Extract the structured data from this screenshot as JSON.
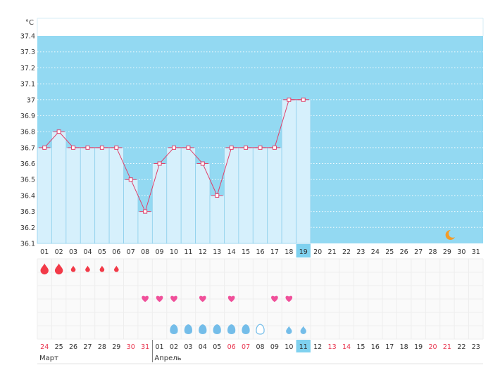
{
  "unit": "°C",
  "colors": {
    "chart_bg": "#93d9f2",
    "bar_fill": "#d6f0fc",
    "bar_stroke": "#8fd0ec",
    "line": "#e0406a",
    "today_bg": "#7fd1ef",
    "weekend": "#e8344e",
    "text": "#333333",
    "grid": "#ffffff",
    "period": "#f23a48",
    "love": "#f0509a",
    "drop": "#74bde9",
    "moon": "#f39c28"
  },
  "chart_data": {
    "type": "bar",
    "ylim": [
      36.1,
      37.4
    ],
    "yticks": [
      "36.1",
      "36.2",
      "36.3",
      "36.4",
      "36.5",
      "36.6",
      "36.7",
      "36.8",
      "36.9",
      "37",
      "37.1",
      "37.2",
      "37.3",
      "37.4"
    ],
    "categories": [
      "01",
      "02",
      "03",
      "04",
      "05",
      "06",
      "07",
      "08",
      "09",
      "10",
      "11",
      "12",
      "13",
      "14",
      "15",
      "16",
      "17",
      "18",
      "19",
      "20",
      "21",
      "22",
      "23",
      "24",
      "25",
      "26",
      "27",
      "28",
      "29",
      "30",
      "31"
    ],
    "values": [
      36.7,
      36.8,
      36.7,
      36.7,
      36.7,
      36.7,
      36.5,
      36.3,
      36.6,
      36.7,
      36.7,
      36.6,
      36.4,
      36.7,
      36.7,
      36.7,
      36.7,
      37.0,
      37.0,
      null,
      null,
      null,
      null,
      null,
      null,
      null,
      null,
      null,
      null,
      null,
      null
    ],
    "highlight_index": 18,
    "moon_index": 28
  },
  "calendar": {
    "dates": [
      {
        "d": "24",
        "weekend": true
      },
      {
        "d": "25",
        "weekend": false
      },
      {
        "d": "26",
        "weekend": false
      },
      {
        "d": "27",
        "weekend": false
      },
      {
        "d": "28",
        "weekend": false
      },
      {
        "d": "29",
        "weekend": false
      },
      {
        "d": "30",
        "weekend": true
      },
      {
        "d": "31",
        "weekend": true
      },
      {
        "d": "01",
        "weekend": false
      },
      {
        "d": "02",
        "weekend": false
      },
      {
        "d": "03",
        "weekend": false
      },
      {
        "d": "04",
        "weekend": false
      },
      {
        "d": "05",
        "weekend": false
      },
      {
        "d": "06",
        "weekend": true
      },
      {
        "d": "07",
        "weekend": true
      },
      {
        "d": "08",
        "weekend": false
      },
      {
        "d": "09",
        "weekend": false
      },
      {
        "d": "10",
        "weekend": false
      },
      {
        "d": "11",
        "weekend": false
      },
      {
        "d": "12",
        "weekend": false
      },
      {
        "d": "13",
        "weekend": true
      },
      {
        "d": "14",
        "weekend": true
      },
      {
        "d": "15",
        "weekend": false
      },
      {
        "d": "16",
        "weekend": false
      },
      {
        "d": "17",
        "weekend": false
      },
      {
        "d": "18",
        "weekend": false
      },
      {
        "d": "19",
        "weekend": false
      },
      {
        "d": "20",
        "weekend": true
      },
      {
        "d": "21",
        "weekend": true
      },
      {
        "d": "22",
        "weekend": false
      },
      {
        "d": "23",
        "weekend": false
      }
    ],
    "today_index": 18,
    "months": [
      {
        "label": "Март",
        "start_index": 0
      },
      {
        "label": "Апрель",
        "start_index": 8
      }
    ],
    "period_levels": [
      3,
      3,
      2,
      2,
      2,
      2
    ],
    "love_days": [
      7,
      8,
      9,
      11,
      13,
      16,
      17
    ],
    "drops": [
      {
        "i": 9,
        "kind": "oval"
      },
      {
        "i": 10,
        "kind": "oval"
      },
      {
        "i": 11,
        "kind": "oval"
      },
      {
        "i": 12,
        "kind": "oval"
      },
      {
        "i": 13,
        "kind": "oval"
      },
      {
        "i": 14,
        "kind": "oval"
      },
      {
        "i": 15,
        "kind": "outline"
      },
      {
        "i": 17,
        "kind": "drop"
      },
      {
        "i": 18,
        "kind": "drop"
      }
    ]
  }
}
